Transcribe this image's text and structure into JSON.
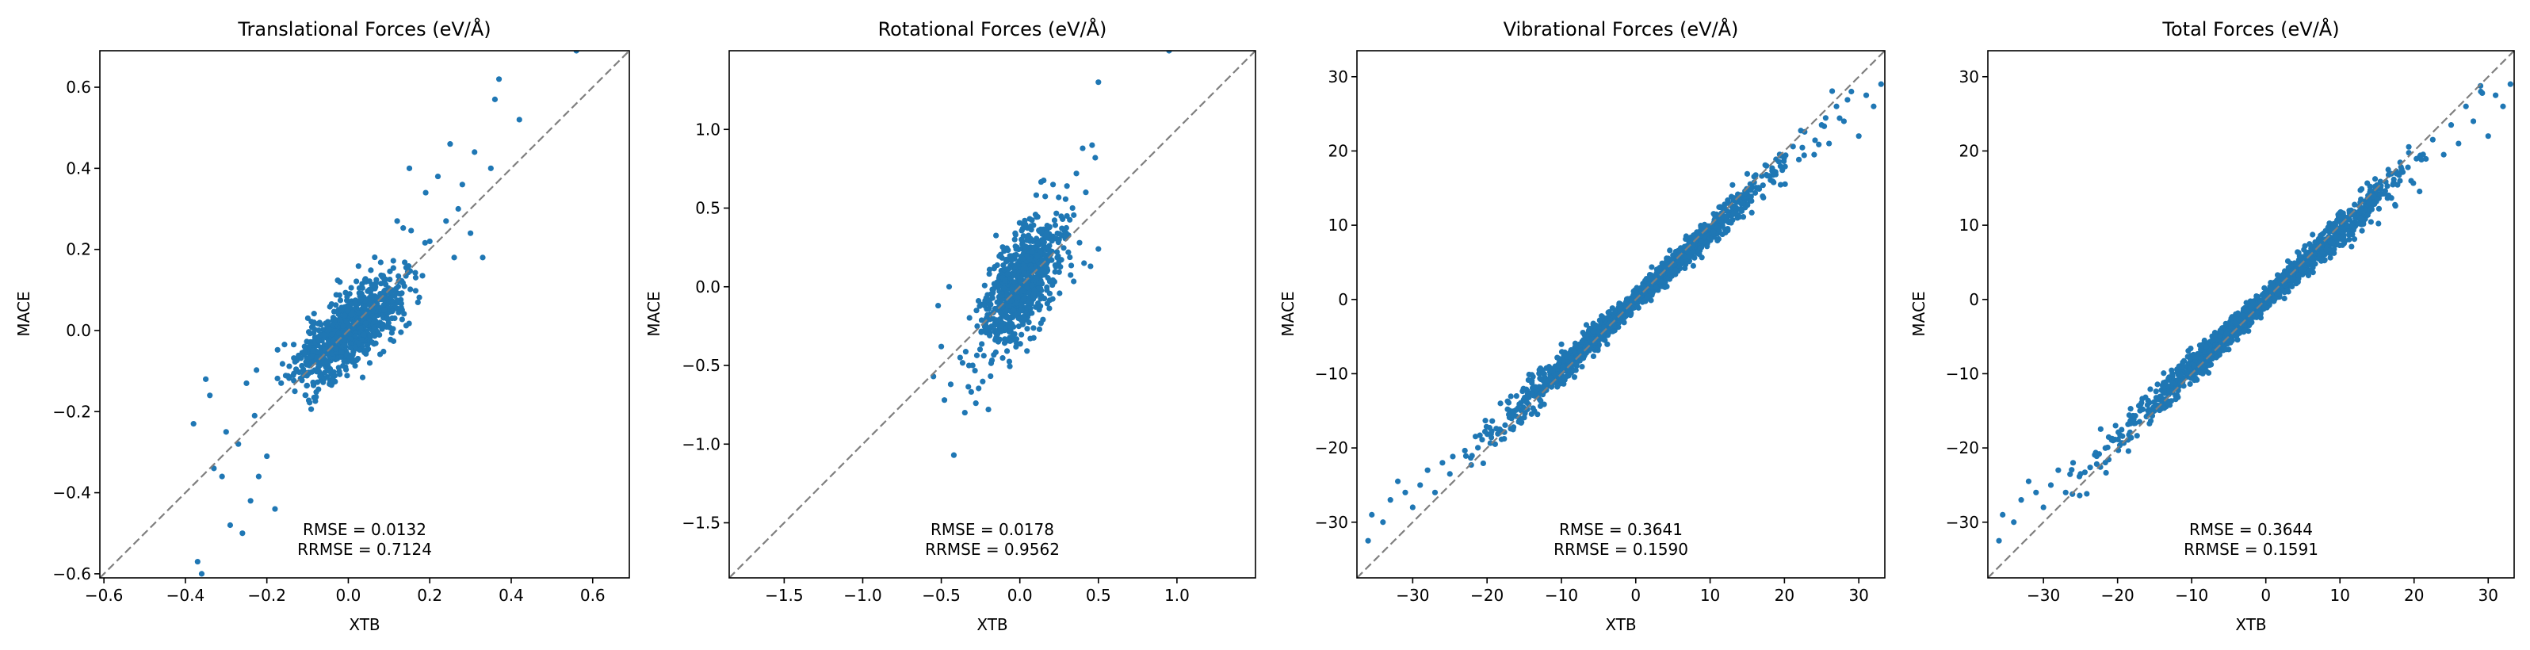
{
  "chart_data": [
    {
      "type": "scatter",
      "title": "Translational Forces (eV/Å)",
      "xlabel": "XTB",
      "ylabel": "MACE",
      "xlim": [
        -0.61,
        0.69
      ],
      "ylim": [
        -0.61,
        0.69
      ],
      "xticks": [
        -0.6,
        -0.4,
        -0.2,
        0.0,
        0.2,
        0.4,
        0.6
      ],
      "xtick_labels": [
        "−0.6",
        "−0.4",
        "−0.2",
        "0.0",
        "0.2",
        "0.4",
        "0.6"
      ],
      "yticks": [
        -0.6,
        -0.4,
        -0.2,
        0.0,
        0.2,
        0.4,
        0.6
      ],
      "ytick_labels": [
        "−0.6",
        "−0.4",
        "−0.2",
        "0.0",
        "0.2",
        "0.4",
        "0.6"
      ],
      "color": "#1f77b4",
      "diagonal_color": "#7f7f7f",
      "rmse_text": "RMSE = 0.0132",
      "rrmse_text": "RRMSE = 0.7124",
      "cloud": {
        "count": 900,
        "sx": 0.065,
        "sy": 0.065,
        "rho": 0.72,
        "seed": 11
      },
      "points": [
        [
          0.56,
          0.69
        ],
        [
          0.37,
          0.62
        ],
        [
          0.42,
          0.52
        ],
        [
          0.31,
          0.44
        ],
        [
          0.36,
          0.57
        ],
        [
          0.28,
          0.36
        ],
        [
          0.25,
          0.46
        ],
        [
          0.22,
          0.38
        ],
        [
          0.15,
          0.4
        ],
        [
          0.19,
          0.34
        ],
        [
          -0.36,
          -0.6
        ],
        [
          -0.37,
          -0.57
        ],
        [
          -0.38,
          -0.23
        ],
        [
          -0.34,
          -0.16
        ],
        [
          -0.35,
          -0.12
        ],
        [
          -0.33,
          -0.34
        ],
        [
          -0.31,
          -0.36
        ],
        [
          -0.29,
          -0.48
        ],
        [
          -0.26,
          -0.5
        ],
        [
          -0.24,
          -0.42
        ],
        [
          -0.27,
          -0.28
        ],
        [
          -0.22,
          -0.36
        ],
        [
          -0.2,
          -0.31
        ],
        [
          -0.3,
          -0.25
        ],
        [
          -0.18,
          -0.44
        ],
        [
          -0.23,
          -0.21
        ],
        [
          -0.25,
          -0.13
        ],
        [
          0.3,
          0.24
        ],
        [
          0.33,
          0.18
        ],
        [
          0.27,
          0.3
        ],
        [
          0.24,
          0.27
        ],
        [
          0.2,
          0.22
        ],
        [
          0.26,
          0.18
        ],
        [
          0.35,
          0.4
        ],
        [
          0.12,
          0.27
        ]
      ]
    },
    {
      "type": "scatter",
      "title": "Rotational Forces (eV/Å)",
      "xlabel": "XTB",
      "ylabel": "MACE",
      "xlim": [
        -1.85,
        1.5
      ],
      "ylim": [
        -1.85,
        1.5
      ],
      "xticks": [
        -1.5,
        -1.0,
        -0.5,
        0.0,
        0.5,
        1.0
      ],
      "xtick_labels": [
        "−1.5",
        "−1.0",
        "−0.5",
        "0.0",
        "0.5",
        "1.0"
      ],
      "yticks": [
        -1.5,
        -1.0,
        -0.5,
        0.0,
        0.5,
        1.0
      ],
      "ytick_labels": [
        "−1.5",
        "−1.0",
        "−0.5",
        "0.0",
        "0.5",
        "1.0"
      ],
      "color": "#1f77b4",
      "diagonal_color": "#7f7f7f",
      "rmse_text": "RMSE = 0.0178",
      "rrmse_text": "RRMSE = 0.9562",
      "cloud": {
        "count": 800,
        "sx": 0.12,
        "sy": 0.2,
        "rho": 0.6,
        "seed": 23
      },
      "points": [
        [
          0.95,
          1.5
        ],
        [
          0.5,
          1.3
        ],
        [
          0.4,
          0.88
        ],
        [
          0.46,
          0.9
        ],
        [
          0.48,
          0.82
        ],
        [
          0.36,
          0.72
        ],
        [
          0.42,
          0.6
        ],
        [
          0.3,
          0.64
        ],
        [
          0.45,
          0.13
        ],
        [
          0.5,
          0.24
        ],
        [
          -0.42,
          -1.07
        ],
        [
          -0.48,
          -0.72
        ],
        [
          -0.55,
          -0.57
        ],
        [
          -0.44,
          -0.62
        ],
        [
          -0.35,
          -0.8
        ],
        [
          -0.5,
          -0.38
        ],
        [
          -0.38,
          -0.45
        ],
        [
          -0.28,
          -0.74
        ],
        [
          -0.2,
          -0.78
        ],
        [
          -0.3,
          -0.5
        ],
        [
          0.25,
          0.3
        ],
        [
          0.3,
          0.45
        ],
        [
          0.38,
          0.28
        ],
        [
          -0.45,
          0.0
        ],
        [
          -0.52,
          -0.12
        ]
      ]
    },
    {
      "type": "scatter",
      "title": "Vibrational Forces (eV/Å)",
      "xlabel": "XTB",
      "ylabel": "MACE",
      "xlim": [
        -37.5,
        33.5
      ],
      "ylim": [
        -37.5,
        33.5
      ],
      "xticks": [
        -30,
        -20,
        -10,
        0,
        10,
        20,
        30
      ],
      "xtick_labels": [
        "−30",
        "−20",
        "−10",
        "0",
        "10",
        "20",
        "30"
      ],
      "yticks": [
        -30,
        -20,
        -10,
        0,
        10,
        20,
        30
      ],
      "ytick_labels": [
        "−30",
        "−20",
        "−10",
        "0",
        "10",
        "20",
        "30"
      ],
      "color": "#1f77b4",
      "diagonal_color": "#7f7f7f",
      "rmse_text": "RMSE = 0.3641",
      "rrmse_text": "RRMSE = 0.1590",
      "band": {
        "count": 1700,
        "sigma": 8.5,
        "noise_base": 0.6,
        "noise_slope": 0.045,
        "slope": 0.93,
        "seed": 37
      },
      "points": [
        [
          -36,
          -32.5
        ],
        [
          -35.5,
          -29
        ],
        [
          -34,
          -30
        ],
        [
          -33,
          -27
        ],
        [
          -31,
          -26
        ],
        [
          -30,
          -28
        ],
        [
          -32,
          -24.5
        ],
        [
          -29,
          -25
        ],
        [
          -28,
          -23
        ],
        [
          -27,
          -26
        ],
        [
          -26,
          -22
        ],
        [
          -25,
          -23.5
        ],
        [
          33,
          29
        ],
        [
          32,
          26
        ],
        [
          31,
          27.5
        ],
        [
          29,
          28
        ],
        [
          28,
          24
        ],
        [
          27,
          26
        ],
        [
          30,
          22
        ],
        [
          26,
          21
        ],
        [
          25,
          23.5
        ],
        [
          24,
          19.5
        ]
      ]
    },
    {
      "type": "scatter",
      "title": "Total Forces (eV/Å)",
      "xlabel": "XTB",
      "ylabel": "MACE",
      "xlim": [
        -37.5,
        33.5
      ],
      "ylim": [
        -37.5,
        33.5
      ],
      "xticks": [
        -30,
        -20,
        -10,
        0,
        10,
        20,
        30
      ],
      "xtick_labels": [
        "−30",
        "−20",
        "−10",
        "0",
        "10",
        "20",
        "30"
      ],
      "yticks": [
        -30,
        -20,
        -10,
        0,
        10,
        20,
        30
      ],
      "ytick_labels": [
        "−30",
        "−20",
        "−10",
        "0",
        "10",
        "20",
        "30"
      ],
      "color": "#1f77b4",
      "diagonal_color": "#7f7f7f",
      "rmse_text": "RMSE = 0.3644",
      "rrmse_text": "RRMSE = 0.1591",
      "band": {
        "count": 1700,
        "sigma": 8.5,
        "noise_base": 0.6,
        "noise_slope": 0.045,
        "slope": 0.93,
        "seed": 53
      },
      "points": [
        [
          -36,
          -32.5
        ],
        [
          -35.5,
          -29
        ],
        [
          -34,
          -30
        ],
        [
          -33,
          -27
        ],
        [
          -31,
          -26
        ],
        [
          -30,
          -28
        ],
        [
          -32,
          -24.5
        ],
        [
          -29,
          -25
        ],
        [
          -28,
          -23
        ],
        [
          -27,
          -26
        ],
        [
          -26,
          -22
        ],
        [
          -25,
          -23.5
        ],
        [
          33,
          29
        ],
        [
          32,
          26
        ],
        [
          31,
          27.5
        ],
        [
          29,
          28
        ],
        [
          28,
          24
        ],
        [
          27,
          26
        ],
        [
          30,
          22
        ],
        [
          26,
          21
        ],
        [
          25,
          23.5
        ],
        [
          24,
          19.5
        ]
      ]
    }
  ]
}
